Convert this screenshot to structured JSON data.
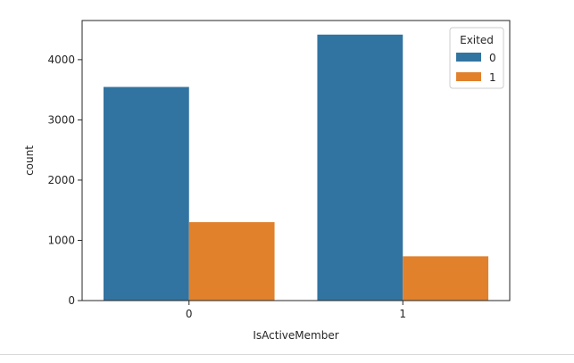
{
  "chart_data": {
    "type": "bar",
    "xlabel": "IsActiveMember",
    "ylabel": "count",
    "categories": [
      "0",
      "1"
    ],
    "ylim": [
      0,
      4650
    ],
    "yticks": [
      0,
      1000,
      2000,
      3000,
      4000
    ],
    "ytick_labels": [
      "0",
      "1000",
      "2000",
      "3000",
      "4000"
    ],
    "grid": false,
    "legend": {
      "title": "Exited",
      "placement": "top-right"
    },
    "series": [
      {
        "name": "0",
        "color": "#3274a1",
        "values": [
          3547,
          4416
        ]
      },
      {
        "name": "1",
        "color": "#e1812c",
        "values": [
          1302,
          735
        ]
      }
    ]
  }
}
